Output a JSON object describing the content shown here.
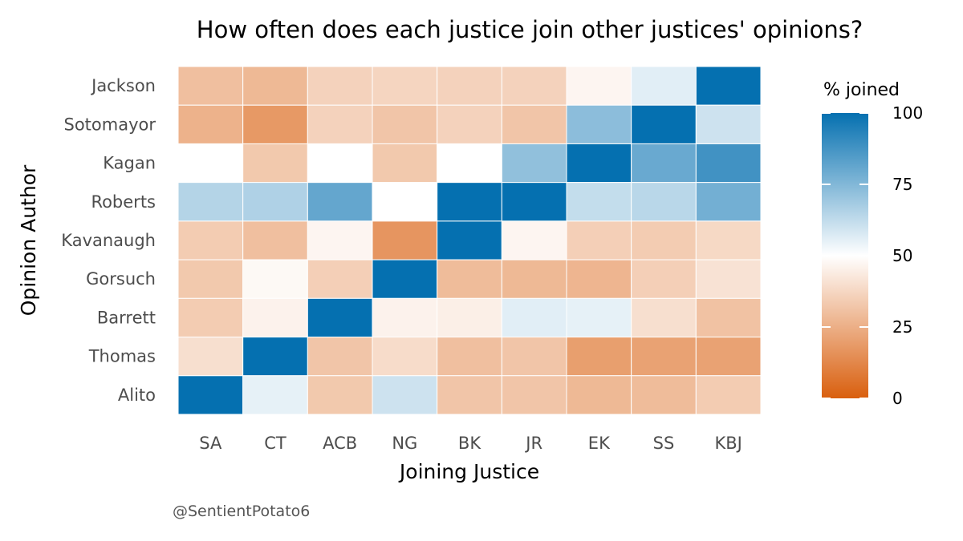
{
  "chart_data": {
    "type": "heatmap",
    "title": "How often does each justice join other justices' opinions?",
    "xlabel": "Joining Justice",
    "ylabel": "Opinion Author",
    "caption": "@SentientPotato6",
    "x_categories": [
      "SA",
      "CT",
      "ACB",
      "NG",
      "BK",
      "JR",
      "EK",
      "SS",
      "KBJ"
    ],
    "y_categories": [
      "Jackson",
      "Sotomayor",
      "Kagan",
      "Roberts",
      "Kavanaugh",
      "Gorsuch",
      "Barrett",
      "Thomas",
      "Alito"
    ],
    "values": [
      [
        30,
        28,
        36,
        37,
        36,
        36,
        47,
        56,
        100
      ],
      [
        26,
        18,
        36,
        32,
        36,
        32,
        73,
        100,
        60
      ],
      [
        50,
        33,
        50,
        33,
        50,
        72,
        100,
        80,
        88
      ],
      [
        65,
        66,
        81,
        50,
        100,
        100,
        62,
        64,
        78
      ],
      [
        34,
        30,
        47,
        17,
        100,
        47,
        35,
        34,
        38
      ],
      [
        33,
        48,
        35,
        100,
        29,
        28,
        27,
        35,
        41
      ],
      [
        34,
        46,
        100,
        46,
        45,
        56,
        55,
        40,
        31
      ],
      [
        40,
        100,
        32,
        39,
        30,
        32,
        20,
        21,
        21
      ],
      [
        100,
        55,
        33,
        60,
        32,
        32,
        28,
        29,
        34
      ]
    ],
    "legend": {
      "title": "% joined",
      "min": 0,
      "max": 100,
      "ticks": [
        100,
        75,
        50,
        25,
        0
      ],
      "low_color": "#d95f0e",
      "mid_color": "#ffffff",
      "high_color": "#0570b0",
      "midpoint": 50
    },
    "grid": false
  }
}
